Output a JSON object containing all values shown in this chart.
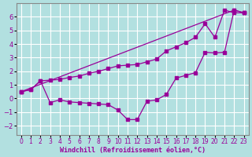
{
  "xlabel": "Windchill (Refroidissement éolien,°C)",
  "background_color": "#b2e0e0",
  "grid_color": "#ffffff",
  "line_color": "#990099",
  "xlim": [
    -0.5,
    23.5
  ],
  "ylim": [
    -2.7,
    7.0
  ],
  "yticks": [
    -2,
    -1,
    0,
    1,
    2,
    3,
    4,
    5,
    6
  ],
  "xticks": [
    0,
    1,
    2,
    3,
    4,
    5,
    6,
    7,
    8,
    9,
    10,
    11,
    12,
    13,
    14,
    15,
    16,
    17,
    18,
    19,
    20,
    21,
    22,
    23
  ],
  "line1_x": [
    0,
    22,
    23
  ],
  "line1_y": [
    0.5,
    6.5,
    6.3
  ],
  "line2_x": [
    0,
    1,
    2,
    3,
    4,
    5,
    6,
    7,
    8,
    9,
    10,
    11,
    12,
    13,
    14,
    15,
    16,
    17,
    18,
    19,
    20,
    21,
    22,
    23
  ],
  "line2_y": [
    0.5,
    0.65,
    1.3,
    1.35,
    1.4,
    1.55,
    1.65,
    1.85,
    2.0,
    2.2,
    2.4,
    2.45,
    2.5,
    2.7,
    2.9,
    3.5,
    3.8,
    4.1,
    4.5,
    5.5,
    4.5,
    6.5,
    6.3,
    6.3
  ],
  "line3_x": [
    0,
    1,
    2,
    3,
    4,
    5,
    6,
    7,
    8,
    9,
    10,
    11,
    12,
    13,
    14,
    15,
    16,
    17,
    18,
    19,
    20,
    21,
    22,
    23
  ],
  "line3_y": [
    0.5,
    0.65,
    1.3,
    -0.3,
    -0.1,
    -0.25,
    -0.3,
    -0.35,
    -0.4,
    -0.45,
    -0.85,
    -1.55,
    -1.55,
    -0.2,
    -0.1,
    0.3,
    1.5,
    1.7,
    1.9,
    3.4,
    3.35,
    3.4,
    6.5,
    6.3
  ]
}
